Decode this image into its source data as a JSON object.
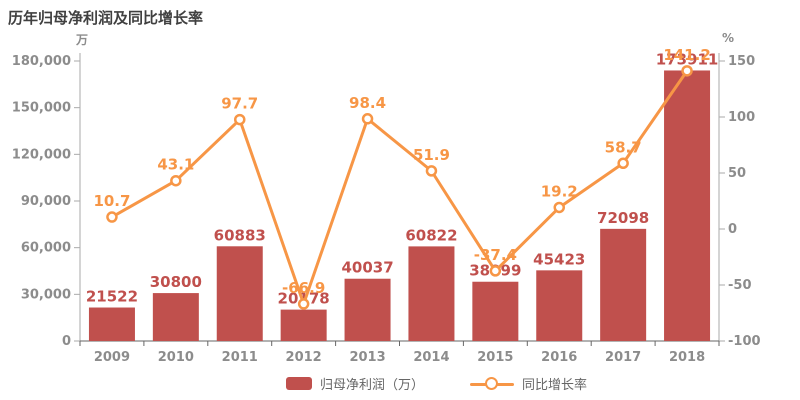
{
  "chart_data": {
    "type": "combo-bar-line",
    "title": "历年归母净利润及同比增长率",
    "categories": [
      "2009",
      "2010",
      "2011",
      "2012",
      "2013",
      "2014",
      "2015",
      "2016",
      "2017",
      "2018"
    ],
    "series": [
      {
        "name": "归母净利润（万）",
        "type": "bar",
        "axis": "left",
        "color": "#c0504d",
        "values": [
          21522,
          30800,
          60883,
          20178,
          40037,
          60822,
          38099,
          45423,
          72098,
          173911
        ]
      },
      {
        "name": "同比增长率",
        "type": "line",
        "axis": "right",
        "color": "#f79646",
        "marker": "circle-white-fill",
        "values": [
          10.7,
          43.1,
          97.7,
          -66.9,
          98.4,
          51.9,
          -37.4,
          19.2,
          58.7,
          141.2
        ]
      }
    ],
    "left_axis": {
      "unit": "万",
      "min": 0,
      "max": 180000,
      "tick_step": 30000,
      "tick_labels": [
        "0",
        "30,000",
        "60,000",
        "90,000",
        "120,000",
        "150,000",
        "180,000"
      ]
    },
    "right_axis": {
      "unit": "%",
      "min": -100,
      "max": 150,
      "tick_step": 50,
      "tick_labels": [
        "-100",
        "-50",
        "0",
        "50",
        "100",
        "150"
      ]
    },
    "grid": false,
    "legend_position": "bottom"
  },
  "colors": {
    "bar": "#c0504d",
    "bar_label": "#c0504d",
    "line": "#f79646",
    "line_label": "#f79646",
    "axis_line": "#aaaaaa",
    "x_axis_line": "#666666",
    "tick_label": "#8c8c8c",
    "title": "#404040",
    "legend_text": "#666666"
  }
}
